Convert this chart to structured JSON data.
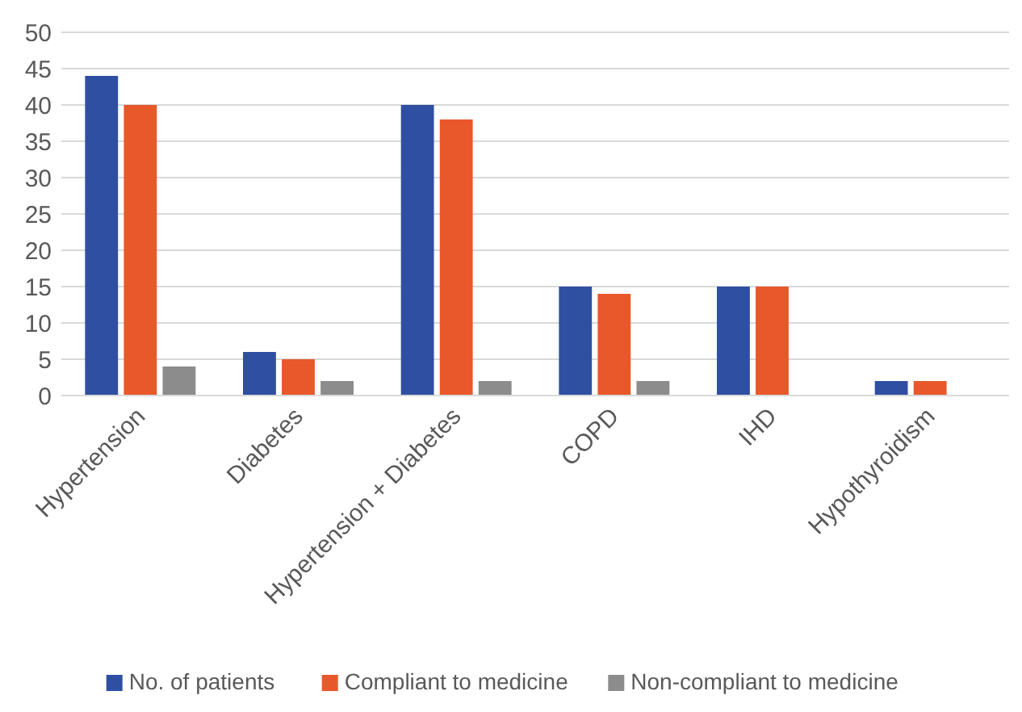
{
  "chart_data": {
    "type": "bar",
    "categories": [
      "Hypertension",
      "Diabetes",
      "Hypertension + Diabetes",
      "COPD",
      "IHD",
      "Hypothyroidism"
    ],
    "series": [
      {
        "name": "No. of patients",
        "color": "#2f4fa2",
        "values": [
          44,
          6,
          40,
          15,
          15,
          2
        ]
      },
      {
        "name": "Compliant to medicine",
        "color": "#e8582a",
        "values": [
          40,
          5,
          38,
          14,
          15,
          2
        ]
      },
      {
        "name": "Non-compliant to medicine",
        "color": "#8c8c8c",
        "values": [
          4,
          2,
          2,
          2,
          0,
          0
        ]
      }
    ],
    "ylim": [
      0,
      50
    ],
    "yticks": [
      0,
      5,
      10,
      15,
      20,
      25,
      30,
      35,
      40,
      45,
      50
    ],
    "grid": "y",
    "legend": "bottom"
  }
}
